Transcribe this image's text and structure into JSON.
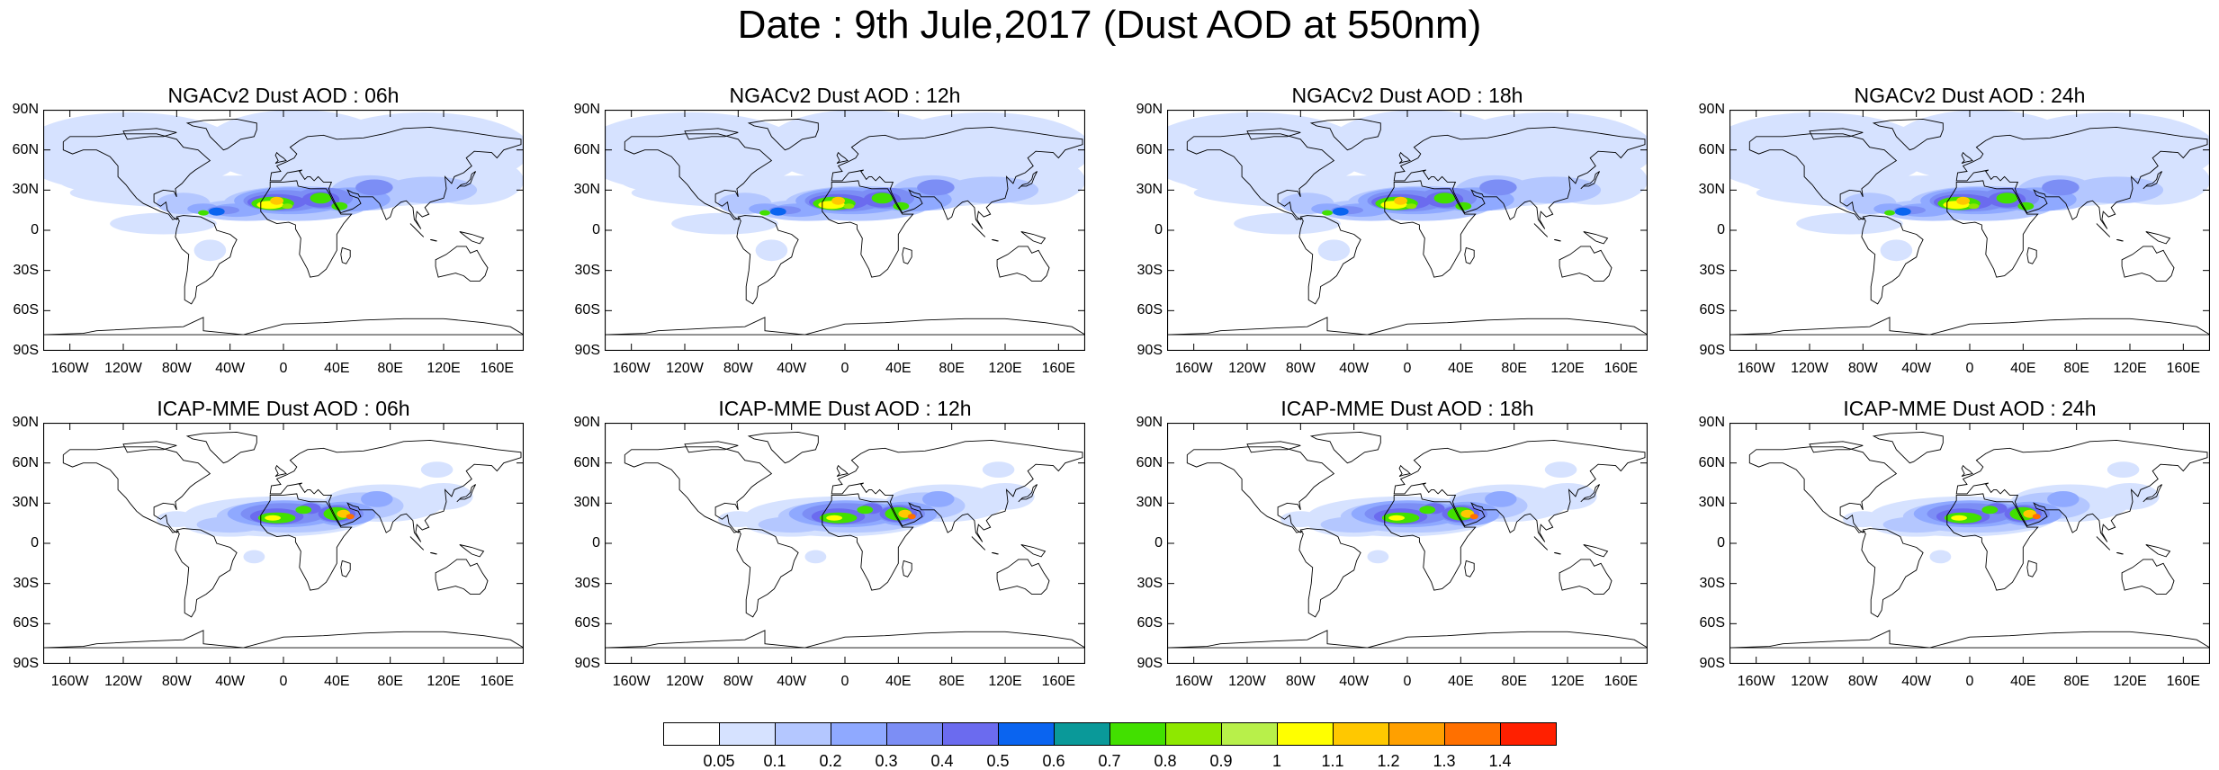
{
  "title": "Date : 9th Jule,2017 (Dust AOD at 550nm)",
  "panels": [
    {
      "title": "NGACv2 Dust AOD : 06h",
      "model": "ngac"
    },
    {
      "title": "NGACv2 Dust AOD : 12h",
      "model": "ngac"
    },
    {
      "title": "NGACv2 Dust AOD : 18h",
      "model": "ngac"
    },
    {
      "title": "NGACv2 Dust AOD : 24h",
      "model": "ngac"
    },
    {
      "title": "ICAP-MME Dust AOD : 06h",
      "model": "icap"
    },
    {
      "title": "ICAP-MME Dust AOD : 12h",
      "model": "icap"
    },
    {
      "title": "ICAP-MME Dust AOD : 18h",
      "model": "icap"
    },
    {
      "title": "ICAP-MME Dust AOD : 24h",
      "model": "icap"
    }
  ],
  "lat_labels": [
    "90N",
    "60N",
    "30N",
    "0",
    "30S",
    "60S",
    "90S"
  ],
  "lat_values": [
    90,
    60,
    30,
    0,
    -30,
    -60,
    -90
  ],
  "lon_labels": [
    "160W",
    "120W",
    "80W",
    "40W",
    "0",
    "40E",
    "80E",
    "120E",
    "160E"
  ],
  "lon_values": [
    -160,
    -120,
    -80,
    -40,
    0,
    40,
    80,
    120,
    160
  ],
  "colorbar": {
    "labels": [
      "0.05",
      "0.1",
      "0.2",
      "0.3",
      "0.4",
      "0.5",
      "0.6",
      "0.7",
      "0.8",
      "0.9",
      "1",
      "1.1",
      "1.2",
      "1.3",
      "1.4"
    ],
    "colors": [
      "#ffffff",
      "#d6e2ff",
      "#b4c7ff",
      "#8fa9ff",
      "#7c8ef5",
      "#6b6bef",
      "#0a64f0",
      "#0a9999",
      "#42e000",
      "#8ee800",
      "#b8f04a",
      "#ffff00",
      "#ffc800",
      "#ffa000",
      "#ff7000",
      "#ff2000"
    ]
  }
}
